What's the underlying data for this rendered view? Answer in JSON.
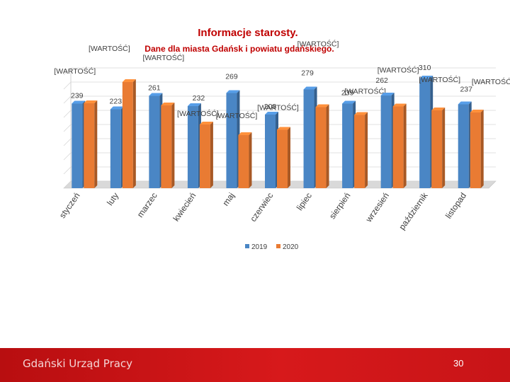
{
  "slide": {
    "title": "Informacje starosty.",
    "subtitle": "Dane dla miasta Gdańsk i powiatu gdańskiego.",
    "brand": "Gdański Urząd Pracy",
    "page_number": "30"
  },
  "colors": {
    "series_2019": "#4a86c5",
    "series_2020": "#e97b33",
    "title": "#c00000",
    "footer": "#c81417"
  },
  "chart_data": {
    "type": "bar",
    "title": "",
    "xlabel": "",
    "ylabel": "",
    "ylim": [
      0,
      320
    ],
    "grid": true,
    "legend_position": "bottom",
    "categories": [
      "styczeń",
      "luty",
      "marzec",
      "kwiecień",
      "maj",
      "czerwiec",
      "lipiec",
      "sierpień",
      "wrzesień",
      "październik",
      "listopad"
    ],
    "series": [
      {
        "name": "2019",
        "values": [
          239,
          223,
          261,
          232,
          269,
          208,
          279,
          239,
          262,
          310,
          237
        ],
        "labels": [
          "239",
          "223",
          "261",
          "232",
          "269",
          "208",
          "279",
          "239",
          "262",
          "310",
          "237"
        ]
      },
      {
        "name": "2020",
        "values": [
          240,
          300,
          234,
          180,
          150,
          165,
          229,
          207,
          231,
          220,
          214
        ],
        "labels": [
          "[WARTOŚĆ]",
          "[WARTOŚĆ]",
          "[WARTOŚĆ]",
          "[WARTOŚĆ]",
          "[WARTOŚĆ]",
          "[WARTOŚĆ]",
          "[WARTOŚĆ]",
          "[WARTOŚĆ]",
          "[WARTOŚĆ]",
          "[WARTOŚĆ]",
          "[WARTOŚĆ]"
        ]
      }
    ]
  }
}
